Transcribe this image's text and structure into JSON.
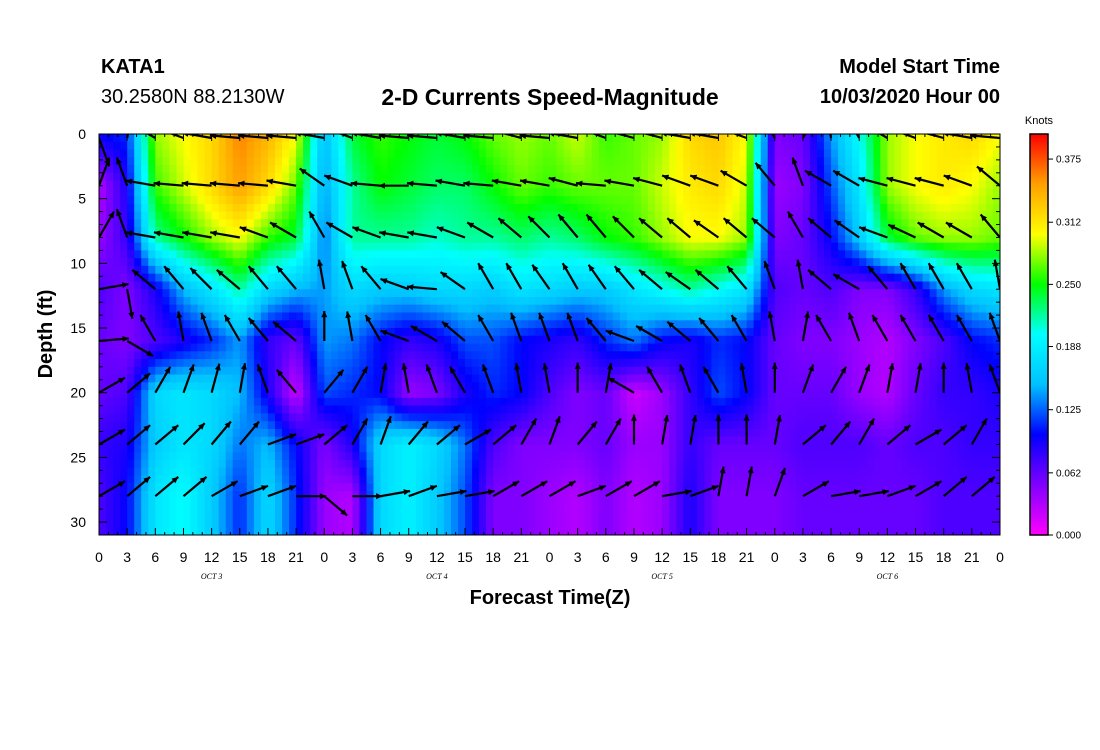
{
  "header": {
    "station": "KATA1",
    "coords": "30.2580N 88.2130W",
    "title": "2-D Currents Speed-Magnitude",
    "model_start_label": "Model Start Time",
    "model_start_value": "10/03/2020 Hour 00"
  },
  "chart_data": {
    "type": "heatmap",
    "title": "2-D Currents Speed-Magnitude",
    "xlabel": "Forecast Time(Z)",
    "ylabel": "Depth (ft)",
    "x_tick_labels": [
      "0",
      "3",
      "6",
      "9",
      "12",
      "15",
      "18",
      "21",
      "0",
      "3",
      "6",
      "9",
      "12",
      "15",
      "18",
      "21",
      "0",
      "3",
      "6",
      "9",
      "12",
      "15",
      "18",
      "21",
      "0",
      "3",
      "6",
      "9",
      "12",
      "15",
      "18",
      "21",
      "0"
    ],
    "x_hours": [
      0,
      3,
      6,
      9,
      12,
      15,
      18,
      21,
      24,
      27,
      30,
      33,
      36,
      39,
      42,
      45,
      48,
      51,
      54,
      57,
      60,
      63,
      66,
      69,
      72,
      75,
      78,
      81,
      84,
      87,
      90,
      93,
      96
    ],
    "day_labels": [
      {
        "label": "OCT 3",
        "hour": 12
      },
      {
        "label": "OCT 4",
        "hour": 36
      },
      {
        "label": "OCT 5",
        "hour": 60
      },
      {
        "label": "OCT 6",
        "hour": 84
      }
    ],
    "xlim": [
      0,
      96
    ],
    "ylim": [
      0,
      31
    ],
    "y_inverted": true,
    "y_ticks": [
      0,
      5,
      10,
      15,
      20,
      25,
      30
    ],
    "depths": [
      0,
      4,
      8,
      12,
      16,
      20,
      24,
      28
    ],
    "hours": [
      0,
      3,
      6,
      9,
      12,
      15,
      18,
      21,
      24,
      27,
      30,
      33,
      36,
      39,
      42,
      45,
      48,
      51,
      54,
      57,
      60,
      63,
      66,
      69,
      72,
      75,
      78,
      81,
      84,
      87,
      90,
      93,
      96
    ],
    "speed": [
      [
        0.1,
        0.11,
        0.28,
        0.3,
        0.32,
        0.36,
        0.34,
        0.3,
        0.15,
        0.24,
        0.26,
        0.25,
        0.24,
        0.25,
        0.27,
        0.28,
        0.27,
        0.29,
        0.26,
        0.27,
        0.28,
        0.32,
        0.33,
        0.3,
        0.05,
        0.06,
        0.14,
        0.2,
        0.28,
        0.3,
        0.31,
        0.32,
        0.3
      ],
      [
        0.03,
        0.09,
        0.26,
        0.29,
        0.32,
        0.35,
        0.32,
        0.27,
        0.14,
        0.22,
        0.25,
        0.24,
        0.23,
        0.23,
        0.25,
        0.27,
        0.26,
        0.27,
        0.27,
        0.27,
        0.29,
        0.31,
        0.32,
        0.29,
        0.04,
        0.05,
        0.12,
        0.18,
        0.28,
        0.3,
        0.31,
        0.3,
        0.28
      ],
      [
        0.04,
        0.08,
        0.22,
        0.25,
        0.28,
        0.3,
        0.26,
        0.24,
        0.13,
        0.22,
        0.22,
        0.22,
        0.21,
        0.22,
        0.22,
        0.23,
        0.22,
        0.23,
        0.25,
        0.26,
        0.28,
        0.3,
        0.3,
        0.28,
        0.05,
        0.06,
        0.1,
        0.16,
        0.24,
        0.27,
        0.28,
        0.28,
        0.27
      ],
      [
        0.07,
        0.05,
        0.09,
        0.15,
        0.18,
        0.22,
        0.17,
        0.15,
        0.14,
        0.17,
        0.16,
        0.16,
        0.17,
        0.17,
        0.16,
        0.18,
        0.17,
        0.16,
        0.16,
        0.18,
        0.2,
        0.22,
        0.2,
        0.18,
        0.07,
        0.06,
        0.07,
        0.05,
        0.05,
        0.08,
        0.14,
        0.17,
        0.18
      ],
      [
        0.06,
        0.05,
        0.07,
        0.09,
        0.11,
        0.14,
        0.08,
        0.06,
        0.14,
        0.13,
        0.1,
        0.08,
        0.09,
        0.12,
        0.12,
        0.1,
        0.09,
        0.08,
        0.11,
        0.13,
        0.1,
        0.09,
        0.11,
        0.1,
        0.06,
        0.05,
        0.05,
        0.04,
        0.03,
        0.05,
        0.07,
        0.1,
        0.11
      ],
      [
        0.06,
        0.07,
        0.17,
        0.18,
        0.17,
        0.15,
        0.09,
        0.02,
        0.12,
        0.11,
        0.1,
        0.04,
        0.05,
        0.09,
        0.11,
        0.1,
        0.07,
        0.05,
        0.06,
        0.02,
        0.04,
        0.08,
        0.12,
        0.1,
        0.06,
        0.06,
        0.06,
        0.04,
        0.03,
        0.06,
        0.08,
        0.08,
        0.09
      ],
      [
        0.08,
        0.09,
        0.16,
        0.18,
        0.17,
        0.13,
        0.15,
        0.1,
        0.05,
        0.09,
        0.17,
        0.19,
        0.17,
        0.13,
        0.07,
        0.05,
        0.05,
        0.05,
        0.06,
        0.04,
        0.04,
        0.08,
        0.06,
        0.06,
        0.06,
        0.07,
        0.07,
        0.07,
        0.06,
        0.07,
        0.07,
        0.08,
        0.08
      ],
      [
        0.07,
        0.1,
        0.18,
        0.2,
        0.16,
        0.11,
        0.17,
        0.11,
        0.04,
        0.03,
        0.17,
        0.19,
        0.16,
        0.12,
        0.05,
        0.05,
        0.04,
        0.03,
        0.05,
        0.03,
        0.04,
        0.09,
        0.05,
        0.05,
        0.05,
        0.06,
        0.06,
        0.06,
        0.06,
        0.06,
        0.07,
        0.07,
        0.07
      ]
    ],
    "vector_scale_note": "direction in degrees (math convention, 0 = east, 90 = up)",
    "direction_rows": [
      [
        -70,
        80,
        150,
        160,
        170,
        175,
        175,
        175,
        170,
        160,
        170,
        175,
        175,
        170,
        175,
        165,
        175,
        170,
        160,
        165,
        165,
        170,
        170,
        160,
        120,
        60,
        100,
        120,
        150,
        160,
        165,
        170,
        175
      ],
      [
        70,
        110,
        170,
        175,
        175,
        175,
        175,
        170,
        145,
        160,
        175,
        180,
        175,
        170,
        175,
        170,
        170,
        165,
        175,
        170,
        165,
        160,
        160,
        150,
        130,
        110,
        150,
        150,
        165,
        165,
        165,
        160,
        140
      ],
      [
        60,
        110,
        170,
        170,
        170,
        170,
        160,
        150,
        120,
        150,
        160,
        170,
        170,
        160,
        150,
        140,
        135,
        130,
        130,
        135,
        140,
        140,
        145,
        140,
        140,
        120,
        140,
        145,
        160,
        155,
        150,
        150,
        130
      ],
      [
        10,
        -80,
        140,
        130,
        135,
        140,
        130,
        130,
        100,
        110,
        130,
        160,
        175,
        145,
        120,
        120,
        125,
        120,
        125,
        130,
        140,
        145,
        140,
        130,
        110,
        100,
        140,
        150,
        130,
        120,
        120,
        120,
        100
      ],
      [
        5,
        -30,
        120,
        100,
        110,
        120,
        130,
        140,
        90,
        100,
        120,
        160,
        150,
        140,
        120,
        110,
        110,
        110,
        130,
        160,
        150,
        140,
        130,
        120,
        100,
        80,
        120,
        110,
        120,
        120,
        120,
        120,
        110
      ],
      [
        30,
        40,
        60,
        70,
        75,
        80,
        110,
        130,
        50,
        60,
        80,
        100,
        110,
        120,
        110,
        100,
        100,
        90,
        80,
        150,
        120,
        110,
        120,
        100,
        90,
        70,
        60,
        70,
        80,
        80,
        90,
        100,
        110
      ],
      [
        30,
        40,
        40,
        45,
        50,
        50,
        20,
        20,
        40,
        60,
        70,
        50,
        40,
        30,
        40,
        60,
        70,
        50,
        60,
        90,
        80,
        80,
        90,
        90,
        80,
        40,
        50,
        60,
        40,
        30,
        40,
        60,
        70
      ],
      [
        30,
        40,
        40,
        40,
        30,
        20,
        20,
        0,
        -40,
        0,
        10,
        20,
        10,
        10,
        30,
        30,
        30,
        20,
        30,
        30,
        10,
        20,
        80,
        80,
        70,
        30,
        10,
        10,
        20,
        30,
        40,
        40,
        60
      ]
    ],
    "colorbar": {
      "label": "Knots",
      "ticks": [
        "0.375",
        "0.312",
        "0.250",
        "0.188",
        "0.125",
        "0.062",
        "0.000"
      ],
      "tick_values": [
        0.375,
        0.312,
        0.25,
        0.188,
        0.125,
        0.062,
        0.0
      ],
      "range": [
        0,
        0.4
      ],
      "colors": [
        "#ff00ff",
        "#8000ff",
        "#0000ff",
        "#00c0ff",
        "#00ffff",
        "#00ff00",
        "#ffff00",
        "#ffa000",
        "#ff0000"
      ]
    }
  }
}
